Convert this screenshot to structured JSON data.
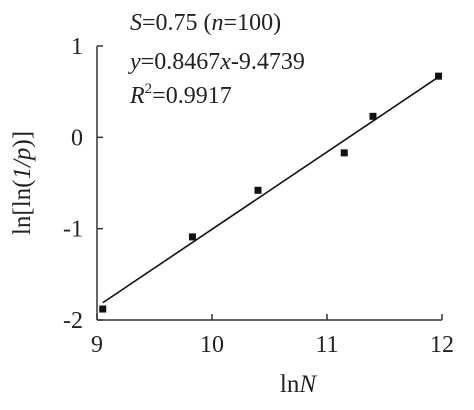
{
  "chart_data": {
    "type": "scatter",
    "x": [
      9.05,
      9.83,
      10.4,
      11.15,
      11.4,
      11.97
    ],
    "y": [
      -1.88,
      -1.09,
      -0.58,
      -0.17,
      0.23,
      0.67
    ],
    "fit_line": {
      "slope": 0.8467,
      "intercept": -9.4739,
      "x_range": [
        9.05,
        11.97
      ]
    },
    "xlim": [
      9,
      12
    ],
    "ylim": [
      -2,
      1
    ],
    "xticks": [
      "9",
      "10",
      "11",
      "12"
    ],
    "yticks": [
      "1",
      "0",
      "-1",
      "-2"
    ],
    "xlabel": {
      "prefix": "ln",
      "var": "N"
    },
    "ylabel": {
      "prefix": "ln[ln(",
      "var": "1/p",
      "suffix": ")]"
    },
    "annotation": {
      "s_label": "S",
      "s_value": "=0.75 (",
      "n_label": "n",
      "n_value": "=100)",
      "y_label": "y",
      "eq_mid": "=0.8467",
      "x_label": "x",
      "eq_end": "-9.4739",
      "r_label": "R",
      "r_exp": "2",
      "r_value": "=0.9917"
    },
    "grid": false,
    "colors": {
      "axes": "#333333",
      "marker": "#111111",
      "line": "#111111"
    }
  }
}
